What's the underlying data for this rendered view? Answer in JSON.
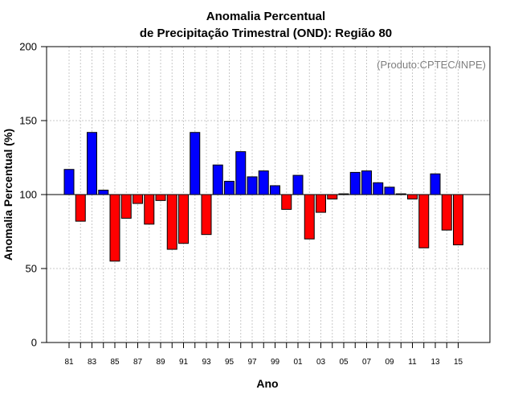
{
  "chart_data": {
    "type": "bar",
    "title_line1": "Anomalia Percentual",
    "title_line2": "de Precipitação Trimestral (OND): Região 80",
    "xlabel": "Ano",
    "ylabel": "Anomalia Percentual (%)",
    "annotation": "(Produto:CPTEC/INPE)",
    "ylim": [
      0,
      200
    ],
    "yticks": [
      "0",
      "50",
      "100",
      "150",
      "200"
    ],
    "baseline": 100,
    "grid": true,
    "colors": {
      "above": "#0000ff",
      "below": "#ff0000",
      "edge": "#000000",
      "grid": "#c8c8c8"
    },
    "categories": [
      "81",
      "82",
      "83",
      "84",
      "85",
      "86",
      "87",
      "88",
      "89",
      "90",
      "91",
      "92",
      "93",
      "94",
      "95",
      "96",
      "97",
      "98",
      "99",
      "00",
      "01",
      "02",
      "03",
      "04",
      "05",
      "06",
      "07",
      "08",
      "09",
      "10",
      "11",
      "12",
      "13",
      "14",
      "15"
    ],
    "xtick_labels": [
      "81",
      "83",
      "85",
      "87",
      "89",
      "91",
      "93",
      "95",
      "97",
      "99",
      "01",
      "03",
      "05",
      "07",
      "09",
      "11",
      "13",
      "15"
    ],
    "values": [
      117,
      82,
      142,
      103,
      55,
      84,
      94,
      80,
      96,
      63,
      67,
      142,
      73,
      120,
      109,
      129,
      112,
      116,
      106,
      90,
      113,
      70,
      88,
      97,
      100.5,
      115,
      116,
      108,
      105,
      100.5,
      97,
      64,
      114,
      76,
      66
    ]
  }
}
